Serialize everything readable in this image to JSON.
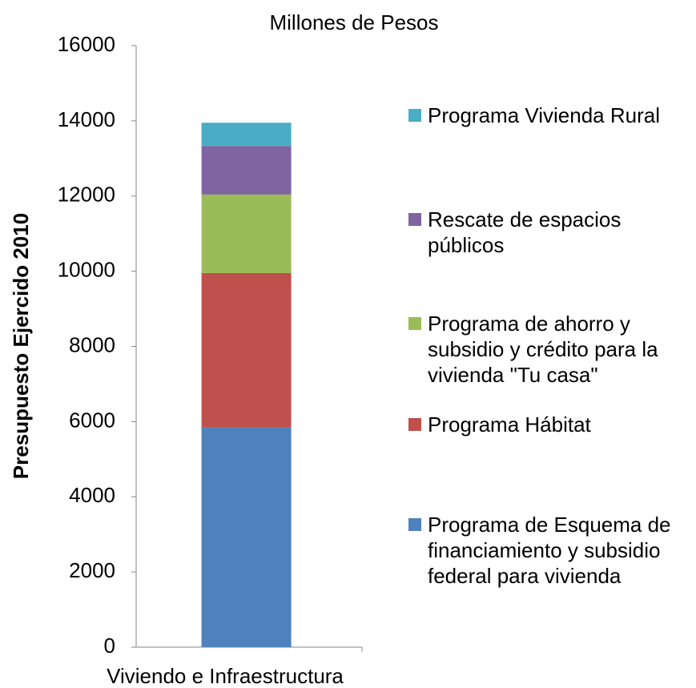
{
  "chart_data": {
    "type": "stacked_bar",
    "title": "Millones de Pesos",
    "y_label": "Presupuesto Ejercido 2010",
    "categories": [
      "Viviendo e Infraestructura"
    ],
    "series": [
      {
        "name": "Programa de Esquema de financiamiento y subsidio federal para vivienda",
        "color": "#4f81bd",
        "values": [
          5840
        ]
      },
      {
        "name": "Programa Hábitat",
        "color": "#c0504d",
        "values": [
          4110
        ]
      },
      {
        "name": "Programa de ahorro y subsidio y crédito para la vivienda \"Tu casa\"",
        "color": "#9bbb59",
        "values": [
          2090
        ]
      },
      {
        "name": "Rescate de espacios públicos",
        "color": "#8064a2",
        "values": [
          1290
        ]
      },
      {
        "name": "Programa Vivienda Rural",
        "color": "#4bacc6",
        "values": [
          620
        ]
      }
    ],
    "ylim": [
      0,
      16000
    ],
    "yticks": [
      0,
      2000,
      4000,
      6000,
      8000,
      10000,
      12000,
      14000,
      16000
    ],
    "legend": "right"
  }
}
